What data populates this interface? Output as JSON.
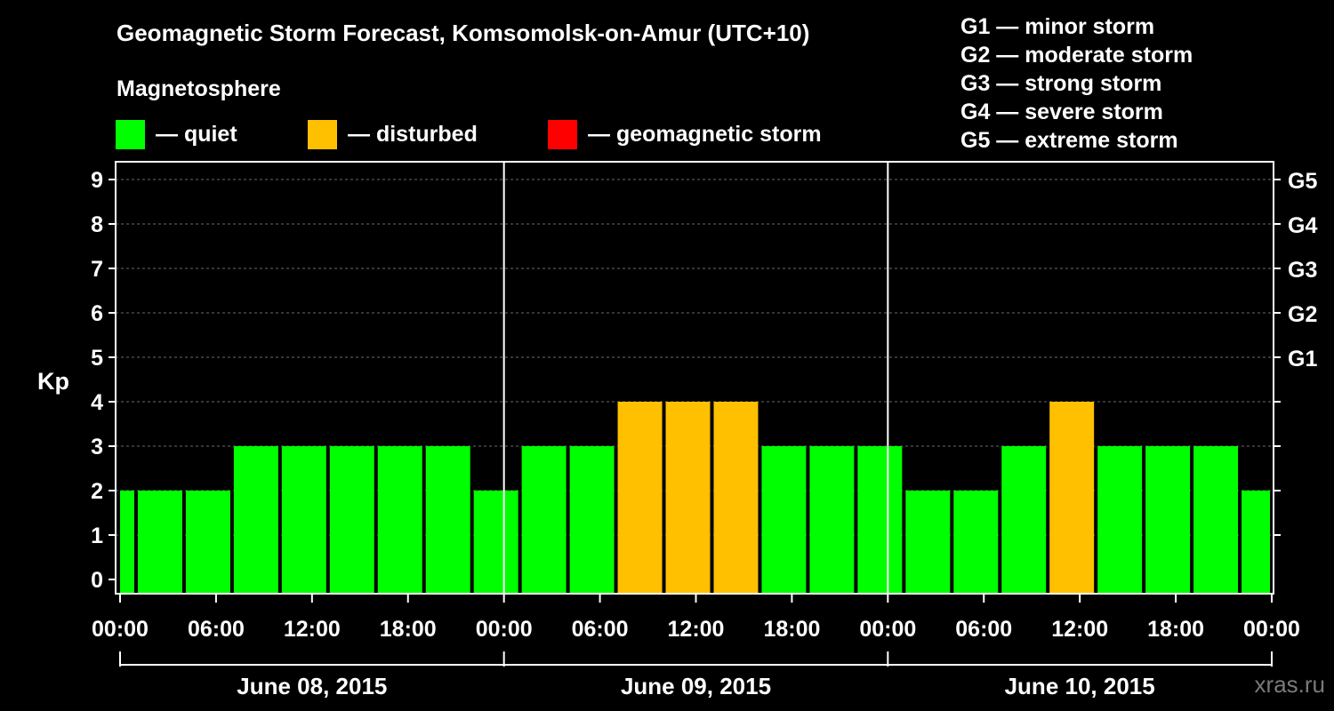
{
  "title": "Geomagnetic Storm Forecast, Komsomolsk-on-Amur (UTC+10)",
  "magnetosphere_label": "Magnetosphere",
  "legend": [
    {
      "label": "— quiet",
      "color": "#00ff00"
    },
    {
      "label": "— disturbed",
      "color": "#ffc000"
    },
    {
      "label": "— geomagnetic storm",
      "color": "#ff0000"
    }
  ],
  "storm_scale": [
    "G1 — minor storm",
    "G2 — moderate storm",
    "G3 — strong storm",
    "G4 — severe storm",
    "G5 — extreme storm"
  ],
  "watermark": "xras.ru",
  "chart_data": {
    "type": "bar",
    "ylabel": "Kp",
    "ylim": [
      0,
      9
    ],
    "yticks": [
      0,
      1,
      2,
      3,
      4,
      5,
      6,
      7,
      8,
      9
    ],
    "right_axis_labels": [
      {
        "kp": 5,
        "label": "G1"
      },
      {
        "kp": 6,
        "label": "G2"
      },
      {
        "kp": 7,
        "label": "G3"
      },
      {
        "kp": 8,
        "label": "G4"
      },
      {
        "kp": 9,
        "label": "G5"
      }
    ],
    "x_unit": "hours",
    "xlim": [
      0,
      72
    ],
    "xtick_labels": [
      "00:00",
      "06:00",
      "12:00",
      "18:00",
      "00:00",
      "06:00",
      "12:00",
      "18:00",
      "00:00",
      "06:00",
      "12:00",
      "18:00",
      "00:00"
    ],
    "days": [
      "June 08, 2015",
      "June 09, 2015",
      "June 10, 2015"
    ],
    "bars": [
      {
        "start": 0,
        "end": 1,
        "kp": 2,
        "level": "quiet"
      },
      {
        "start": 1,
        "end": 4,
        "kp": 2,
        "level": "quiet"
      },
      {
        "start": 4,
        "end": 7,
        "kp": 2,
        "level": "quiet"
      },
      {
        "start": 7,
        "end": 10,
        "kp": 3,
        "level": "quiet"
      },
      {
        "start": 10,
        "end": 13,
        "kp": 3,
        "level": "quiet"
      },
      {
        "start": 13,
        "end": 16,
        "kp": 3,
        "level": "quiet"
      },
      {
        "start": 16,
        "end": 19,
        "kp": 3,
        "level": "quiet"
      },
      {
        "start": 19,
        "end": 22,
        "kp": 3,
        "level": "quiet"
      },
      {
        "start": 22,
        "end": 25,
        "kp": 2,
        "level": "quiet"
      },
      {
        "start": 25,
        "end": 28,
        "kp": 3,
        "level": "quiet"
      },
      {
        "start": 28,
        "end": 31,
        "kp": 3,
        "level": "quiet"
      },
      {
        "start": 31,
        "end": 34,
        "kp": 4,
        "level": "disturbed"
      },
      {
        "start": 34,
        "end": 37,
        "kp": 4,
        "level": "disturbed"
      },
      {
        "start": 37,
        "end": 40,
        "kp": 4,
        "level": "disturbed"
      },
      {
        "start": 40,
        "end": 43,
        "kp": 3,
        "level": "quiet"
      },
      {
        "start": 43,
        "end": 46,
        "kp": 3,
        "level": "quiet"
      },
      {
        "start": 46,
        "end": 49,
        "kp": 3,
        "level": "quiet"
      },
      {
        "start": 49,
        "end": 52,
        "kp": 2,
        "level": "quiet"
      },
      {
        "start": 52,
        "end": 55,
        "kp": 2,
        "level": "quiet"
      },
      {
        "start": 55,
        "end": 58,
        "kp": 3,
        "level": "quiet"
      },
      {
        "start": 58,
        "end": 61,
        "kp": 4,
        "level": "disturbed"
      },
      {
        "start": 61,
        "end": 64,
        "kp": 3,
        "level": "quiet"
      },
      {
        "start": 64,
        "end": 67,
        "kp": 3,
        "level": "quiet"
      },
      {
        "start": 67,
        "end": 70,
        "kp": 3,
        "level": "quiet"
      },
      {
        "start": 70,
        "end": 72,
        "kp": 2,
        "level": "quiet"
      }
    ],
    "level_colors": {
      "quiet": "#00ff00",
      "disturbed": "#ffc000",
      "storm": "#ff0000"
    }
  }
}
